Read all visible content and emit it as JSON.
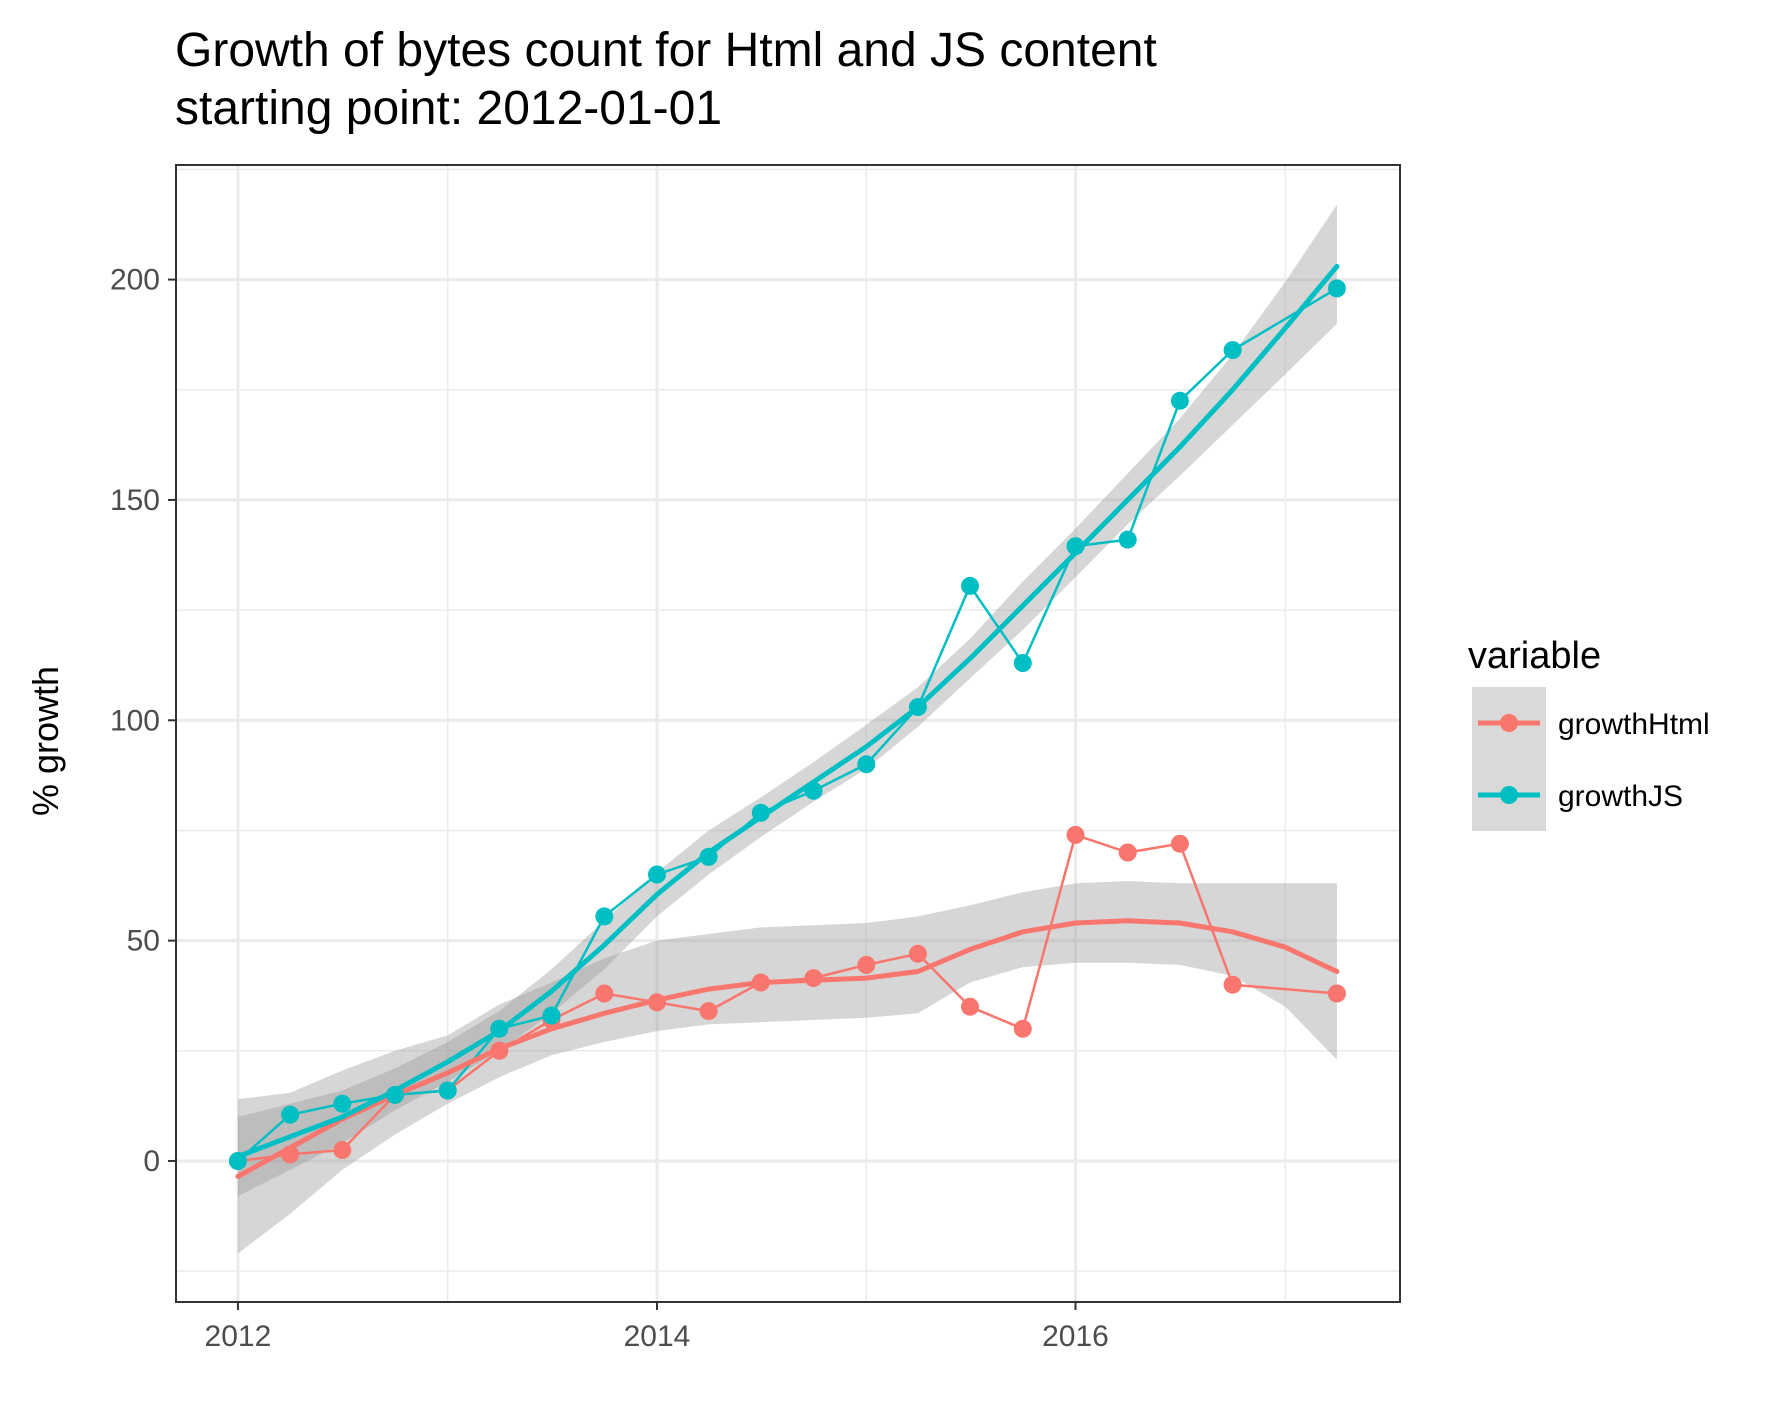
{
  "title_line1": "Growth of bytes count for Html and JS content",
  "title_line2": "starting point: 2012-01-01",
  "chart_data": {
    "type": "line",
    "title": "Growth of bytes count for Html and JS content",
    "subtitle": "starting point: 2012-01-01",
    "xlabel": "",
    "ylabel": "% growth",
    "xlim": [
      "2011-09-15",
      "2017-07-20"
    ],
    "ylim": [
      -32,
      226
    ],
    "x_ticks": [
      "2012",
      "2014",
      "2016"
    ],
    "y_ticks": [
      0,
      50,
      100,
      150,
      200
    ],
    "grid": true,
    "legend": {
      "title": "variable",
      "position": "right"
    },
    "x": [
      "2012-01-01",
      "2012-04-01",
      "2012-07-01",
      "2012-10-01",
      "2013-01-01",
      "2013-04-01",
      "2013-07-01",
      "2013-10-01",
      "2014-01-01",
      "2014-04-01",
      "2014-07-01",
      "2014-10-01",
      "2015-01-01",
      "2015-04-01",
      "2015-07-01",
      "2015-10-01",
      "2016-01-01",
      "2016-04-01",
      "2016-07-01",
      "2016-10-01",
      "2017-04-01"
    ],
    "series": [
      {
        "name": "growthHtml",
        "color": "#F8766D",
        "values": [
          0,
          1.5,
          2.5,
          15,
          16,
          25,
          32,
          38,
          36,
          34,
          40.5,
          41.5,
          44.5,
          47,
          35,
          30,
          74,
          70,
          72,
          40,
          38
        ],
        "smooth": {
          "x": [
            "2012-01-01",
            "2012-04-01",
            "2012-07-01",
            "2012-10-01",
            "2013-01-01",
            "2013-04-01",
            "2013-07-01",
            "2013-10-01",
            "2014-01-01",
            "2014-04-01",
            "2014-07-01",
            "2014-10-01",
            "2015-01-01",
            "2015-04-01",
            "2015-07-01",
            "2015-10-01",
            "2016-01-01",
            "2016-04-01",
            "2016-07-01",
            "2016-10-01",
            "2017-01-01",
            "2017-04-01"
          ],
          "fit": [
            -3.5,
            3,
            9.5,
            15,
            20,
            25.5,
            30,
            33.5,
            36.5,
            39,
            40.5,
            41,
            41.5,
            43,
            48,
            52,
            54,
            54.5,
            54,
            52,
            48.5,
            43
          ],
          "lower": [
            -21,
            -12,
            -2,
            6,
            13,
            19,
            24,
            27,
            29.5,
            31,
            31.5,
            32,
            32.5,
            33.5,
            40.5,
            44,
            45,
            45,
            44.5,
            42,
            35,
            23
          ],
          "upper": [
            14,
            15.5,
            20.5,
            25,
            28.5,
            35.5,
            40.5,
            46,
            50,
            51.5,
            53,
            53.5,
            54,
            55.5,
            58,
            61,
            63,
            63.5,
            63,
            63,
            63,
            63
          ]
        }
      },
      {
        "name": "growthJS",
        "color": "#00BFC4",
        "values": [
          0,
          10.5,
          13,
          15,
          16,
          30,
          33,
          55.5,
          65,
          69,
          79,
          84,
          90,
          103,
          130.5,
          113,
          139.5,
          141,
          172.5,
          184,
          198
        ],
        "smooth": {
          "x": [
            "2012-01-01",
            "2012-04-01",
            "2012-07-01",
            "2012-10-01",
            "2013-01-01",
            "2013-04-01",
            "2013-07-01",
            "2013-10-01",
            "2014-01-01",
            "2014-04-01",
            "2014-07-01",
            "2014-10-01",
            "2015-01-01",
            "2015-04-01",
            "2015-07-01",
            "2015-10-01",
            "2016-01-01",
            "2016-04-01",
            "2016-07-01",
            "2016-10-01",
            "2017-01-01",
            "2017-04-01"
          ],
          "fit": [
            1,
            5.5,
            10,
            16,
            22.5,
            29.5,
            38.5,
            49,
            60.5,
            70,
            78,
            86,
            94,
            103,
            114,
            126,
            138,
            150,
            162,
            175,
            189,
            203
          ],
          "lower": [
            -8,
            -2,
            4,
            11.5,
            18,
            25,
            33.5,
            43.5,
            55.5,
            65,
            73.5,
            81.5,
            89,
            98.5,
            109.5,
            120.5,
            132.5,
            144.5,
            155.5,
            167,
            178.5,
            190
          ],
          "upper": [
            10,
            13,
            16,
            21,
            27,
            34,
            43.5,
            54.5,
            65.5,
            75,
            82.5,
            90.5,
            99,
            107.5,
            118.5,
            131.5,
            143.5,
            156,
            168.5,
            183,
            199.5,
            217
          ]
        }
      }
    ]
  },
  "colors": {
    "growthHtml": "#F8766D",
    "growthJS": "#00BFC4",
    "ribbon": "#999999",
    "grid": "#EBEBEB",
    "panel_border": "#333333",
    "legend_key_bg": "#D9D9D9"
  }
}
